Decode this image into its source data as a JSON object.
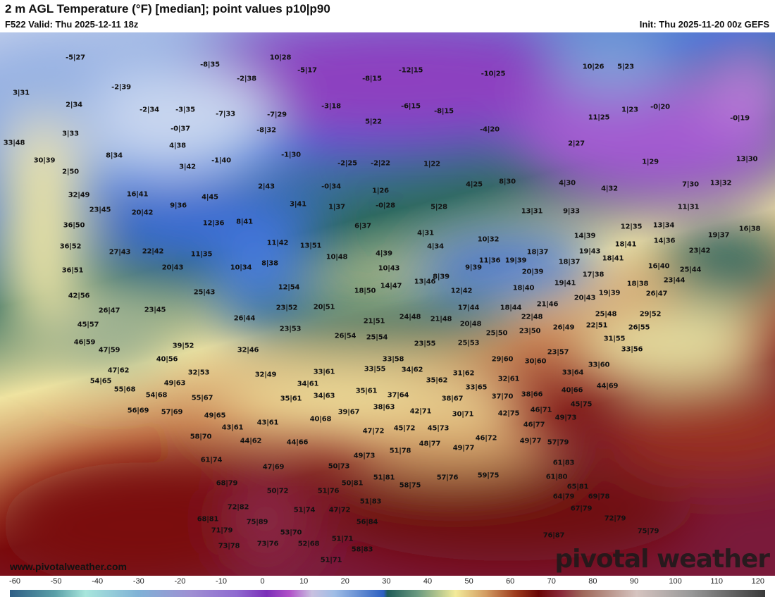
{
  "header": {
    "title": "2 m AGL Temperature (°F) [median]; point values p10|p90",
    "valid": "F522 Valid: Thu 2025-12-11 18z",
    "init": "Init: Thu 2025-11-20 00z GEFS"
  },
  "footer": {
    "site": "www.pivotalweather.com",
    "logo": "pivotal weather"
  },
  "colorbar": {
    "ticks": [
      "-60",
      "-50",
      "-40",
      "-30",
      "-20",
      "-10",
      "0",
      "10",
      "20",
      "30",
      "40",
      "50",
      "60",
      "70",
      "80",
      "90",
      "100",
      "110",
      "120"
    ]
  },
  "colors": {
    "purple": "#8a3fb8",
    "blue": "#3a6fd0",
    "teal": "#2f6a60",
    "yellow": "#f0e6a0",
    "maroon": "#6e0a0a"
  },
  "points": [
    "-5|27",
    "10|28",
    "-8|35",
    "-5|17",
    "-12|15",
    "-10|25",
    "10|26",
    "5|23",
    "-2|38",
    "-8|15",
    "3|31",
    "-2|39",
    "-3|18",
    "-6|15",
    "-8|15",
    "1|23",
    "-0|20",
    "2|34",
    "-2|34",
    "-3|35",
    "-7|33",
    "-7|29",
    "11|25",
    "-0|19",
    "5|22",
    "3|33",
    "-0|37",
    "-8|32",
    "-4|20",
    "2|27",
    "33|48",
    "4|38",
    "-1|30",
    "8|34",
    "30|39",
    "3|42",
    "-1|40",
    "-2|25",
    "-2|22",
    "1|22",
    "1|29",
    "13|30",
    "2|50",
    "4|25",
    "8|30",
    "4|30",
    "4|32",
    "7|30",
    "13|32",
    "2|43",
    "-0|34",
    "1|26",
    "16|41",
    "32|49",
    "4|45",
    "3|41",
    "1|37",
    "-0|28",
    "5|28",
    "13|31",
    "9|33",
    "11|31",
    "23|45",
    "20|42",
    "9|36",
    "8|41",
    "12|36",
    "6|37",
    "12|35",
    "13|34",
    "19|37",
    "16|38",
    "36|50",
    "4|31",
    "10|32",
    "14|39",
    "14|36",
    "36|52",
    "27|43",
    "22|42",
    "11|35",
    "11|42",
    "13|51",
    "4|34",
    "18|37",
    "19|43",
    "18|41",
    "23|42",
    "4|39",
    "10|48",
    "11|36",
    "19|39",
    "18|37",
    "18|41",
    "36|51",
    "20|43",
    "10|34",
    "8|38",
    "10|43",
    "8|39",
    "9|39",
    "20|39",
    "17|38",
    "16|40",
    "25|44",
    "18|40",
    "14|47",
    "13|46",
    "19|41",
    "23|44",
    "42|56",
    "25|43",
    "12|54",
    "18|50",
    "12|42",
    "19|39",
    "18|38",
    "26|47",
    "20|43",
    "26|47",
    "23|45",
    "26|44",
    "23|52",
    "20|51",
    "17|44",
    "18|44",
    "21|46",
    "25|48",
    "29|52",
    "21|51",
    "24|48",
    "21|48",
    "20|48",
    "22|48",
    "26|55",
    "25|50",
    "23|50",
    "26|49",
    "22|51",
    "31|55",
    "33|56",
    "26|54",
    "25|54",
    "23|55",
    "25|53",
    "45|57",
    "46|59",
    "47|59",
    "39|52",
    "32|46",
    "23|53",
    "29|60",
    "30|60",
    "23|57",
    "40|56",
    "33|58",
    "33|55",
    "34|62",
    "31|62",
    "33|61",
    "33|64",
    "33|60",
    "47|62",
    "32|53",
    "32|49",
    "54|65",
    "35|62",
    "32|61",
    "34|61",
    "33|65",
    "40|66",
    "44|69",
    "55|68",
    "49|63",
    "54|68",
    "35|61",
    "37|64",
    "37|70",
    "38|66",
    "38|67",
    "34|63",
    "35|61",
    "45|75",
    "56|69",
    "57|69",
    "55|67",
    "49|65",
    "38|63",
    "39|67",
    "42|71",
    "30|71",
    "42|75",
    "46|71",
    "49|73",
    "40|68",
    "43|61",
    "43|61",
    "47|72",
    "45|72",
    "45|73",
    "46|77",
    "58|70",
    "44|62",
    "44|66",
    "48|77",
    "51|78",
    "49|77",
    "46|72",
    "49|77",
    "57|79",
    "61|74",
    "49|73",
    "50|73",
    "51|81",
    "50|81",
    "61|83",
    "47|69",
    "58|75",
    "57|76",
    "59|75",
    "61|80",
    "65|81",
    "68|79",
    "50|72",
    "51|76",
    "64|79",
    "69|78",
    "72|82",
    "51|74",
    "47|72",
    "51|83",
    "67|79",
    "68|81",
    "75|89",
    "56|84",
    "72|79",
    "71|79",
    "53|70",
    "75|79",
    "51|71",
    "73|76",
    "52|68",
    "58|83",
    "76|87",
    "73|78",
    "51|71"
  ]
}
